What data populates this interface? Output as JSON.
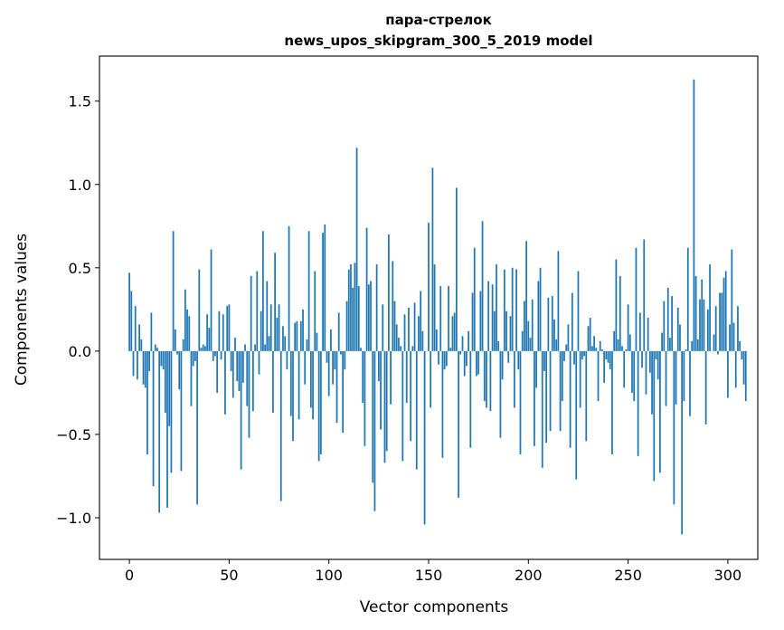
{
  "chart_data": {
    "type": "bar",
    "title_line1": "пара-стрелок",
    "title_line2": "news_upos_skipgram_300_5_2019 model",
    "xlabel": "Vector components",
    "ylabel": "Components values",
    "xlim": [
      -15,
      315
    ],
    "ylim": [
      -1.25,
      1.77
    ],
    "xticks": [
      0,
      50,
      100,
      150,
      200,
      250,
      300
    ],
    "xtick_labels": [
      "0",
      "50",
      "100",
      "150",
      "200",
      "250",
      "300"
    ],
    "yticks": [
      -1.0,
      -0.5,
      0.0,
      0.5,
      1.0,
      1.5
    ],
    "ytick_labels": [
      "−1.0",
      "−0.5",
      "0.0",
      "0.5",
      "1.0",
      "1.5"
    ],
    "bar_color": "#1f77b4",
    "values": [
      0.47,
      0.36,
      -0.15,
      0.27,
      -0.17,
      0.16,
      0.07,
      -0.2,
      -0.22,
      -0.62,
      -0.12,
      0.23,
      -0.81,
      0.04,
      0.02,
      -0.97,
      -0.09,
      -0.11,
      -0.37,
      -0.94,
      -0.45,
      -0.73,
      0.72,
      0.13,
      -0.02,
      -0.23,
      -0.72,
      0.07,
      0.37,
      0.25,
      0.21,
      -0.33,
      -0.09,
      -0.06,
      -0.92,
      0.49,
      0.02,
      0.04,
      0.03,
      0.22,
      0.14,
      0.61,
      -0.06,
      -0.03,
      -0.25,
      0.24,
      -0.05,
      0.22,
      -0.38,
      0.27,
      0.28,
      -0.12,
      -0.28,
      0.08,
      -0.18,
      -0.24,
      -0.71,
      -0.19,
      0.04,
      -0.33,
      -0.52,
      0.45,
      -0.36,
      0.04,
      0.48,
      -0.14,
      0.24,
      0.72,
      0.04,
      0.42,
      0.09,
      0.28,
      -0.37,
      0.59,
      0.2,
      0.28,
      -0.9,
      0.15,
      0.09,
      -0.11,
      0.75,
      -0.39,
      -0.54,
      0.17,
      0.18,
      -0.41,
      0.18,
      0.25,
      -0.2,
      0.07,
      0.72,
      -0.34,
      -0.41,
      0.48,
      0.11,
      -0.66,
      -0.62,
      0.71,
      0.76,
      -0.07,
      -0.27,
      0.13,
      -0.2,
      -0.11,
      -0.43,
      0.23,
      -0.02,
      -0.49,
      -0.11,
      0.3,
      0.49,
      0.52,
      0.38,
      0.53,
      1.22,
      0.39,
      0.02,
      -0.31,
      -0.57,
      0.74,
      0.4,
      0.42,
      -0.79,
      -0.96,
      0.52,
      -0.18,
      -0.47,
      0.28,
      -0.67,
      -0.6,
      0.7,
      -0.32,
      0.54,
      0.3,
      0.16,
      0.08,
      0.03,
      -0.66,
      0.22,
      -0.31,
      0.26,
      -0.54,
      0.03,
      0.29,
      -0.71,
      0.21,
      0.36,
      0.12,
      -1.04,
      0.0,
      0.77,
      -0.34,
      1.1,
      0.52,
      0.13,
      -0.08,
      0.39,
      -0.64,
      -0.11,
      -0.09,
      0.39,
      0.02,
      0.21,
      0.23,
      0.98,
      -0.88,
      -0.02,
      0.09,
      -0.15,
      -0.09,
      0.12,
      -0.58,
      0.35,
      0.62,
      -0.15,
      -0.14,
      0.36,
      0.78,
      -0.3,
      -0.34,
      0.42,
      -0.36,
      0.4,
      0.24,
      0.52,
      0.06,
      -0.52,
      -0.17,
      0.49,
      0.24,
      -0.07,
      0.21,
      0.5,
      -0.34,
      0.49,
      -0.11,
      -0.62,
      0.12,
      0.3,
      0.66,
      0.18,
      0.08,
      0.31,
      -0.57,
      -0.22,
      0.42,
      0.5,
      -0.7,
      -0.12,
      -0.55,
      0.32,
      -0.48,
      0.33,
      0.19,
      0.07,
      0.6,
      -0.48,
      -0.3,
      -0.06,
      0.04,
      0.16,
      -0.58,
      0.35,
      -0.08,
      -0.77,
      0.48,
      -0.34,
      -0.05,
      -0.03,
      -0.54,
      0.15,
      0.2,
      0.03,
      0.09,
      0.02,
      -0.3,
      0.06,
      0.01,
      -0.19,
      -0.05,
      -0.07,
      -0.11,
      -0.62,
      0.12,
      0.55,
      0.07,
      0.45,
      0.03,
      -0.22,
      0.01,
      0.28,
      0.1,
      -0.25,
      -0.3,
      0.62,
      -0.63,
      0.23,
      -0.1,
      0.67,
      -0.26,
      0.2,
      -0.13,
      -0.38,
      -0.78,
      -0.05,
      -0.17,
      -0.73,
      0.11,
      0.3,
      -0.33,
      0.38,
      0.08,
      0.33,
      -0.92,
      -0.32,
      0.26,
      0.16,
      -1.1,
      -0.3,
      0.01,
      0.62,
      -0.39,
      0.06,
      1.63,
      0.45,
      0.07,
      0.31,
      0.43,
      0.31,
      -0.44,
      0.25,
      0.52,
      0.0,
      0.1,
      0.27,
      -0.02,
      0.35,
      0.35,
      0.44,
      0.48,
      -0.28,
      0.16,
      0.61,
      0.17,
      -0.22,
      0.27,
      0.06,
      -0.05,
      -0.2,
      -0.3
    ]
  }
}
